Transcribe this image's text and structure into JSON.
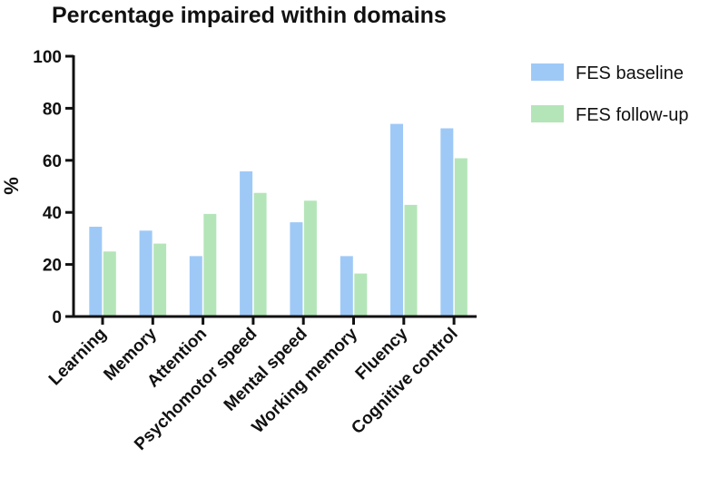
{
  "chart_data": {
    "type": "bar",
    "title": "Percentage impaired within domains",
    "xlabel": "",
    "ylabel": "%",
    "ylim": [
      0,
      100
    ],
    "yticks": [
      0,
      20,
      40,
      60,
      80,
      100
    ],
    "grid": false,
    "legend_position": "top-right",
    "categories": [
      "Learning",
      "Memory",
      "Attention",
      "Psychomotor speed",
      "Mental speed",
      "Working memory",
      "Fluency",
      "Cognitive control"
    ],
    "series": [
      {
        "name": "FES baseline",
        "color": "#9ec9f7",
        "values": [
          34.5,
          33,
          23.2,
          55.8,
          36.2,
          23.2,
          74,
          72.3
        ]
      },
      {
        "name": "FES follow-up",
        "color": "#b4e5b8",
        "values": [
          25,
          28,
          39.4,
          47.5,
          44.5,
          16.5,
          42.9,
          60.8
        ]
      }
    ]
  }
}
